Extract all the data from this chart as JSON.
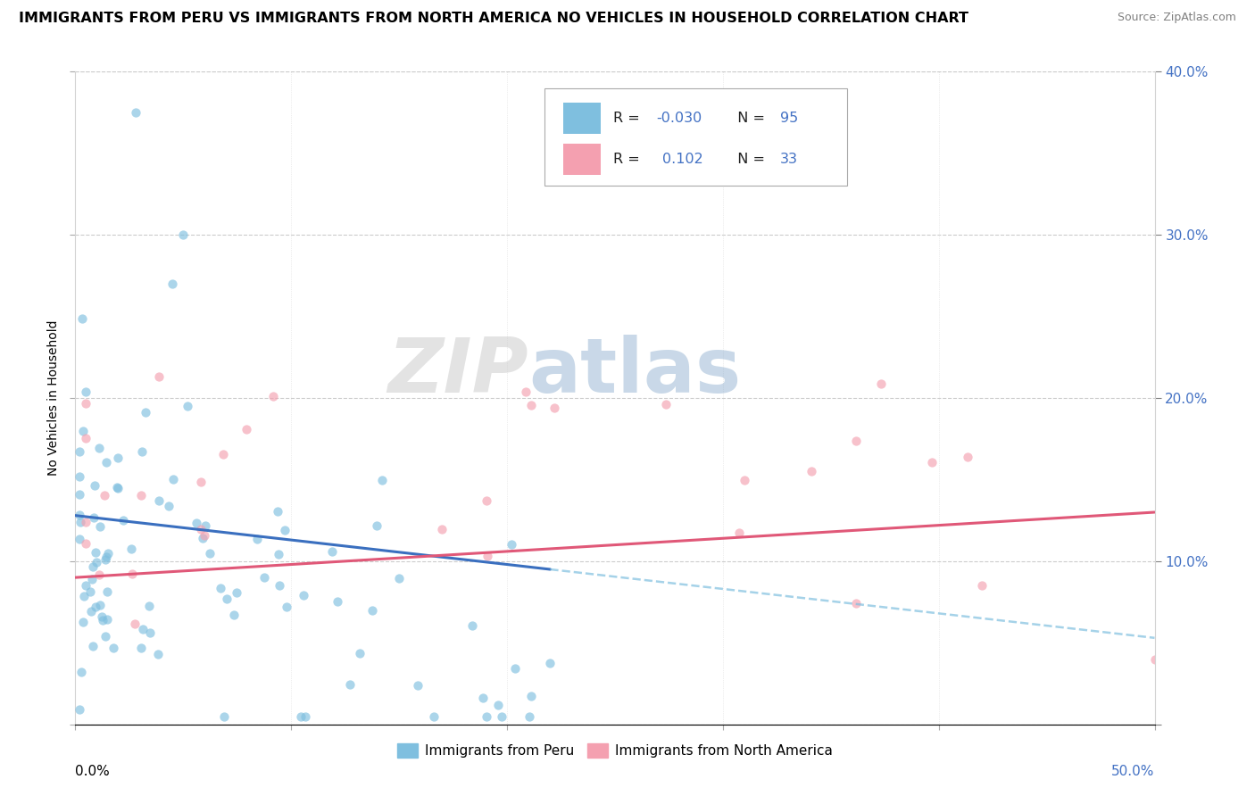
{
  "title": "IMMIGRANTS FROM PERU VS IMMIGRANTS FROM NORTH AMERICA NO VEHICLES IN HOUSEHOLD CORRELATION CHART",
  "source": "Source: ZipAtlas.com",
  "ylabel": "No Vehicles in Household",
  "xlim": [
    0.0,
    0.5
  ],
  "ylim": [
    0.0,
    0.4
  ],
  "color_peru": "#7fbfdf",
  "color_north_america": "#f4a0b0",
  "color_trend_peru": "#3a6fbf",
  "color_trend_na": "#e05878",
  "color_trend_peru_dashed": "#7fbfdf",
  "watermark_zip": "ZIP",
  "watermark_atlas": "atlas",
  "series1_label": "Immigrants from Peru",
  "series2_label": "Immigrants from North America",
  "legend_r1_label": "R = ",
  "legend_r1_val": "-0.030",
  "legend_n1": "N = 95",
  "legend_r2_label": "R =  ",
  "legend_r2_val": "0.102",
  "legend_n2": "N = 33",
  "ytick_color": "#4472c4",
  "title_fontsize": 11.5,
  "axis_fontsize": 11
}
